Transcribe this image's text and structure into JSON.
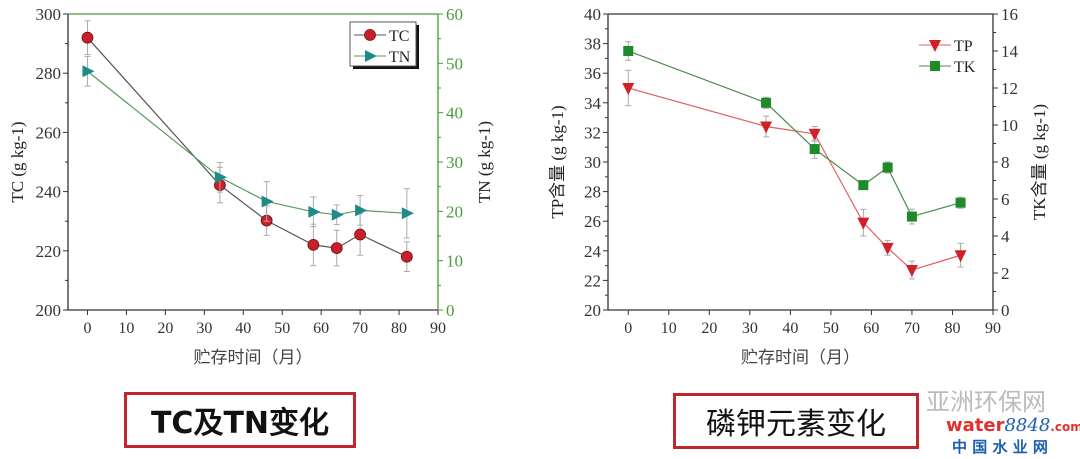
{
  "chart_data": [
    {
      "type": "line",
      "xlabel": "贮存时间（月）",
      "ylabel": "TC (g kg-1)",
      "y2label": "TN (g kg-1)",
      "xlim": [
        -5,
        90
      ],
      "xticks": [
        0,
        10,
        20,
        30,
        40,
        50,
        60,
        70,
        80,
        90
      ],
      "ylim": [
        200,
        300
      ],
      "yticks": [
        200,
        220,
        240,
        260,
        280,
        300
      ],
      "y2lim": [
        0,
        60
      ],
      "y2ticks": [
        0,
        10,
        20,
        30,
        40,
        50,
        60
      ],
      "y2_axis_color": "#4a9a3a",
      "legend": "top-right",
      "x": [
        0,
        34,
        46,
        58,
        64,
        70,
        82
      ],
      "series": [
        {
          "name": "TC",
          "axis": "left",
          "marker": "circle",
          "color": "#c8202a",
          "line_color": "#555555",
          "values": [
            292,
            242.2,
            230.2,
            222,
            220.9,
            225.5,
            218
          ],
          "errors": [
            5.7,
            6,
            5,
            7,
            6,
            7,
            5
          ]
        },
        {
          "name": "TN",
          "axis": "right",
          "marker": "triangle-right",
          "color": "#1e8a8a",
          "line_color": "#5a9a5a",
          "values": [
            48.4,
            26.9,
            22,
            19.9,
            19.3,
            20.2,
            19.6
          ],
          "errors": [
            3,
            3,
            4,
            3,
            2,
            3,
            5
          ]
        }
      ]
    },
    {
      "type": "line",
      "xlabel": "贮存时间（月）",
      "ylabel": "TP含量 (g kg-1)",
      "y2label": "TK含量 (g kg-1)",
      "xlim": [
        -5,
        90
      ],
      "xticks": [
        0,
        10,
        20,
        30,
        40,
        50,
        60,
        70,
        80,
        90
      ],
      "ylim": [
        20,
        40
      ],
      "yticks": [
        20,
        22,
        24,
        26,
        28,
        30,
        32,
        34,
        36,
        38,
        40
      ],
      "y2lim": [
        0,
        16
      ],
      "y2ticks": [
        0,
        2,
        4,
        6,
        8,
        10,
        12,
        14,
        16
      ],
      "y2_axis_color": "#333333",
      "legend": "top-right",
      "x": [
        0,
        34,
        46,
        58,
        64,
        70,
        82
      ],
      "series": [
        {
          "name": "TP",
          "axis": "left",
          "marker": "triangle-down",
          "color": "#d0202a",
          "line_color": "#e06060",
          "values": [
            35,
            32.4,
            31.9,
            25.9,
            24.2,
            22.7,
            23.7
          ],
          "errors": [
            1.2,
            0.7,
            0.5,
            0.9,
            0.5,
            0.6,
            0.8
          ]
        },
        {
          "name": "TK",
          "axis": "right",
          "marker": "square",
          "color": "#1e8a2a",
          "line_color": "#4a8a4a",
          "values": [
            14,
            11.2,
            8.7,
            6.75,
            7.7,
            5.05,
            5.8
          ],
          "errors": [
            0.5,
            0.3,
            0.5,
            0.2,
            0.3,
            0.4,
            0.3
          ]
        }
      ]
    }
  ],
  "captions": [
    "TC及TN变化",
    "磷钾元素变化"
  ],
  "watermark": {
    "line1": "亚洲环保网",
    "brand": "water",
    "brand_num": "8848",
    "brand_suffix": ".com",
    "line2": "中 国 水 业 网"
  }
}
